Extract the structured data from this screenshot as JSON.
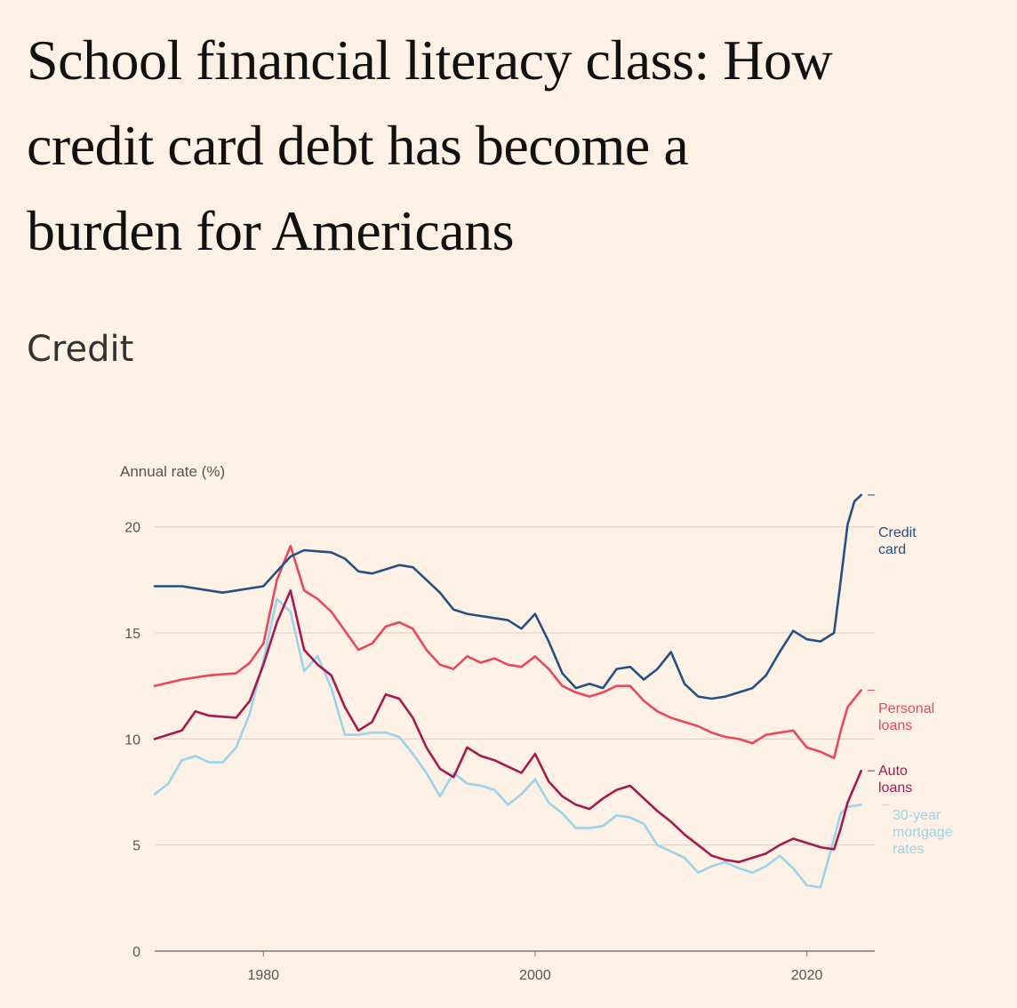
{
  "headline": {
    "line1": "School financial literacy class: How",
    "line2": "credit card debt has become a",
    "line3": "burden for Americans"
  },
  "section": "Credit",
  "chart_data": {
    "type": "line",
    "ylabel": "Annual rate (%)",
    "ylim": [
      0,
      22
    ],
    "xlim": [
      1972,
      2025
    ],
    "yticks": [
      0,
      5,
      10,
      15,
      20
    ],
    "xticks": [
      1980,
      2000,
      2020
    ],
    "grid": true,
    "series": [
      {
        "name": "Credit card",
        "label_lines": [
          "Credit",
          "card"
        ],
        "color": "#25507f",
        "points": [
          [
            1972,
            17.2
          ],
          [
            1974,
            17.2
          ],
          [
            1976,
            17.0
          ],
          [
            1977,
            16.9
          ],
          [
            1978,
            17.0
          ],
          [
            1980,
            17.2
          ],
          [
            1981,
            17.9
          ],
          [
            1982,
            18.6
          ],
          [
            1983,
            18.9
          ],
          [
            1985,
            18.8
          ],
          [
            1986,
            18.5
          ],
          [
            1987,
            17.9
          ],
          [
            1988,
            17.8
          ],
          [
            1989,
            18.0
          ],
          [
            1990,
            18.2
          ],
          [
            1991,
            18.1
          ],
          [
            1992,
            17.5
          ],
          [
            1993,
            16.9
          ],
          [
            1994,
            16.1
          ],
          [
            1995,
            15.9
          ],
          [
            1996,
            15.8
          ],
          [
            1997,
            15.7
          ],
          [
            1998,
            15.6
          ],
          [
            1999,
            15.2
          ],
          [
            2000,
            15.9
          ],
          [
            2001,
            14.6
          ],
          [
            2002,
            13.1
          ],
          [
            2003,
            12.4
          ],
          [
            2004,
            12.6
          ],
          [
            2005,
            12.4
          ],
          [
            2006,
            13.3
          ],
          [
            2007,
            13.4
          ],
          [
            2008,
            12.8
          ],
          [
            2009,
            13.3
          ],
          [
            2010,
            14.1
          ],
          [
            2011,
            12.6
          ],
          [
            2012,
            12.0
          ],
          [
            2013,
            11.9
          ],
          [
            2014,
            12.0
          ],
          [
            2015,
            12.2
          ],
          [
            2016,
            12.4
          ],
          [
            2017,
            13.0
          ],
          [
            2018,
            14.1
          ],
          [
            2019,
            15.1
          ],
          [
            2020,
            14.7
          ],
          [
            2021,
            14.6
          ],
          [
            2022,
            15.0
          ],
          [
            2022.5,
            17.5
          ],
          [
            2023,
            20.1
          ],
          [
            2023.5,
            21.2
          ],
          [
            2024,
            21.5
          ]
        ]
      },
      {
        "name": "Personal loans",
        "label_lines": [
          "Personal",
          "loans"
        ],
        "color": "#e8475c",
        "points": [
          [
            1972,
            12.5
          ],
          [
            1974,
            12.8
          ],
          [
            1976,
            13.0
          ],
          [
            1978,
            13.1
          ],
          [
            1979,
            13.6
          ],
          [
            1980,
            14.5
          ],
          [
            1981,
            17.5
          ],
          [
            1982,
            19.1
          ],
          [
            1983,
            17.0
          ],
          [
            1984,
            16.6
          ],
          [
            1985,
            16.0
          ],
          [
            1986,
            15.1
          ],
          [
            1987,
            14.2
          ],
          [
            1988,
            14.5
          ],
          [
            1989,
            15.3
          ],
          [
            1990,
            15.5
          ],
          [
            1991,
            15.2
          ],
          [
            1992,
            14.2
          ],
          [
            1993,
            13.5
          ],
          [
            1994,
            13.3
          ],
          [
            1995,
            13.9
          ],
          [
            1996,
            13.6
          ],
          [
            1997,
            13.8
          ],
          [
            1998,
            13.5
          ],
          [
            1999,
            13.4
          ],
          [
            2000,
            13.9
          ],
          [
            2001,
            13.3
          ],
          [
            2002,
            12.5
          ],
          [
            2003,
            12.2
          ],
          [
            2004,
            12.0
          ],
          [
            2005,
            12.2
          ],
          [
            2006,
            12.5
          ],
          [
            2007,
            12.5
          ],
          [
            2008,
            11.8
          ],
          [
            2009,
            11.3
          ],
          [
            2010,
            11.0
          ],
          [
            2011,
            10.8
          ],
          [
            2012,
            10.6
          ],
          [
            2013,
            10.3
          ],
          [
            2014,
            10.1
          ],
          [
            2015,
            10.0
          ],
          [
            2016,
            9.8
          ],
          [
            2017,
            10.2
          ],
          [
            2018,
            10.3
          ],
          [
            2019,
            10.4
          ],
          [
            2020,
            9.6
          ],
          [
            2021,
            9.4
          ],
          [
            2022,
            9.1
          ],
          [
            2022.5,
            10.4
          ],
          [
            2023,
            11.5
          ],
          [
            2024,
            12.3
          ]
        ]
      },
      {
        "name": "Auto loans",
        "label_lines": [
          "Auto",
          "loans"
        ],
        "color": "#a51a4e",
        "points": [
          [
            1972,
            10.0
          ],
          [
            1974,
            10.4
          ],
          [
            1975,
            11.3
          ],
          [
            1976,
            11.1
          ],
          [
            1978,
            11.0
          ],
          [
            1979,
            11.8
          ],
          [
            1980,
            13.5
          ],
          [
            1981,
            15.5
          ],
          [
            1982,
            17.0
          ],
          [
            1983,
            14.2
          ],
          [
            1984,
            13.5
          ],
          [
            1985,
            13.0
          ],
          [
            1986,
            11.5
          ],
          [
            1987,
            10.4
          ],
          [
            1988,
            10.8
          ],
          [
            1989,
            12.1
          ],
          [
            1990,
            11.9
          ],
          [
            1991,
            11.0
          ],
          [
            1992,
            9.6
          ],
          [
            1993,
            8.6
          ],
          [
            1994,
            8.2
          ],
          [
            1995,
            9.6
          ],
          [
            1996,
            9.2
          ],
          [
            1997,
            9.0
          ],
          [
            1998,
            8.7
          ],
          [
            1999,
            8.4
          ],
          [
            2000,
            9.3
          ],
          [
            2001,
            8.0
          ],
          [
            2002,
            7.3
          ],
          [
            2003,
            6.9
          ],
          [
            2004,
            6.7
          ],
          [
            2005,
            7.2
          ],
          [
            2006,
            7.6
          ],
          [
            2007,
            7.8
          ],
          [
            2008,
            7.2
          ],
          [
            2009,
            6.6
          ],
          [
            2010,
            6.1
          ],
          [
            2011,
            5.5
          ],
          [
            2012,
            5.0
          ],
          [
            2013,
            4.5
          ],
          [
            2014,
            4.3
          ],
          [
            2015,
            4.2
          ],
          [
            2016,
            4.4
          ],
          [
            2017,
            4.6
          ],
          [
            2018,
            5.0
          ],
          [
            2019,
            5.3
          ],
          [
            2020,
            5.1
          ],
          [
            2021,
            4.9
          ],
          [
            2022,
            4.8
          ],
          [
            2022.5,
            5.8
          ],
          [
            2023,
            7.0
          ],
          [
            2024,
            8.5
          ]
        ]
      },
      {
        "name": "30-year mortgage rates",
        "label_lines": [
          "30-year",
          "mortgage",
          "rates"
        ],
        "color": "#9ad3ea",
        "points": [
          [
            1972,
            7.4
          ],
          [
            1973,
            7.9
          ],
          [
            1974,
            9.0
          ],
          [
            1975,
            9.2
          ],
          [
            1976,
            8.9
          ],
          [
            1977,
            8.9
          ],
          [
            1978,
            9.6
          ],
          [
            1979,
            11.2
          ],
          [
            1980,
            13.7
          ],
          [
            1981,
            16.6
          ],
          [
            1982,
            16.0
          ],
          [
            1983,
            13.2
          ],
          [
            1984,
            13.9
          ],
          [
            1985,
            12.4
          ],
          [
            1986,
            10.2
          ],
          [
            1987,
            10.2
          ],
          [
            1988,
            10.3
          ],
          [
            1989,
            10.3
          ],
          [
            1990,
            10.1
          ],
          [
            1991,
            9.3
          ],
          [
            1992,
            8.4
          ],
          [
            1993,
            7.3
          ],
          [
            1994,
            8.4
          ],
          [
            1995,
            7.9
          ],
          [
            1996,
            7.8
          ],
          [
            1997,
            7.6
          ],
          [
            1998,
            6.9
          ],
          [
            1999,
            7.4
          ],
          [
            2000,
            8.1
          ],
          [
            2001,
            7.0
          ],
          [
            2002,
            6.5
          ],
          [
            2003,
            5.8
          ],
          [
            2004,
            5.8
          ],
          [
            2005,
            5.9
          ],
          [
            2006,
            6.4
          ],
          [
            2007,
            6.3
          ],
          [
            2008,
            6.0
          ],
          [
            2009,
            5.0
          ],
          [
            2010,
            4.7
          ],
          [
            2011,
            4.4
          ],
          [
            2012,
            3.7
          ],
          [
            2013,
            4.0
          ],
          [
            2014,
            4.2
          ],
          [
            2015,
            3.9
          ],
          [
            2016,
            3.7
          ],
          [
            2017,
            4.0
          ],
          [
            2018,
            4.5
          ],
          [
            2019,
            3.9
          ],
          [
            2020,
            3.1
          ],
          [
            2021,
            3.0
          ],
          [
            2022,
            5.3
          ],
          [
            2022.5,
            6.5
          ],
          [
            2023,
            6.8
          ],
          [
            2024,
            6.9
          ]
        ]
      }
    ]
  }
}
